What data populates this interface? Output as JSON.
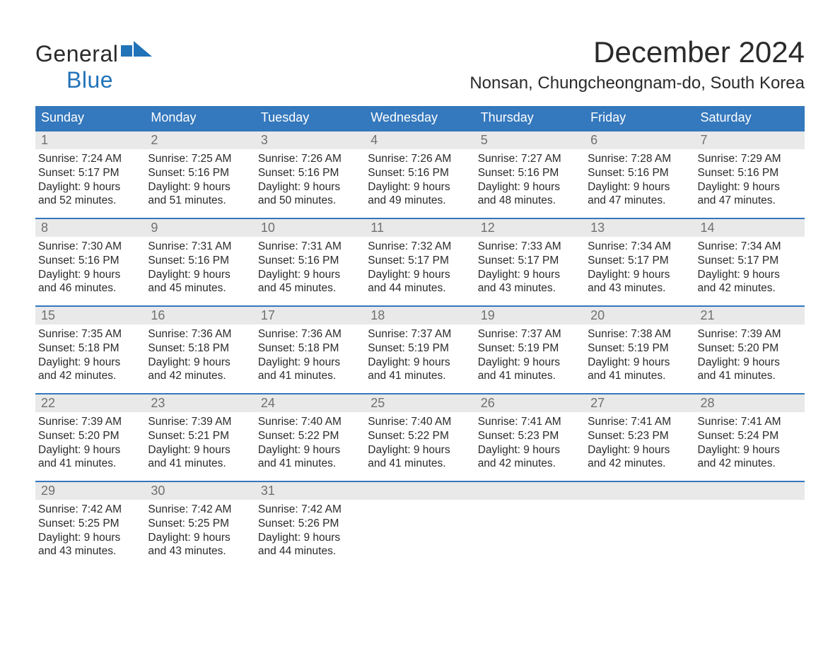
{
  "brand": {
    "general": "General",
    "blue": "Blue",
    "accent": "#2173b8"
  },
  "title": "December 2024",
  "location": "Nonsan, Chungcheongnam-do, South Korea",
  "colors": {
    "header_bg": "#3478bd",
    "header_text": "#ffffff",
    "daynum_bg": "#e9e9e9",
    "daynum_text": "#707070",
    "body_text": "#2a2a2a",
    "week_border": "#3478bd",
    "page_bg": "#ffffff"
  },
  "typography": {
    "title_pt": 42,
    "location_pt": 24,
    "dow_pt": 18,
    "daynum_pt": 18,
    "body_pt": 15.5
  },
  "dow": [
    "Sunday",
    "Monday",
    "Tuesday",
    "Wednesday",
    "Thursday",
    "Friday",
    "Saturday"
  ],
  "weeks": [
    [
      {
        "n": "1",
        "sr": "Sunrise: 7:24 AM",
        "ss": "Sunset: 5:17 PM",
        "d1": "Daylight: 9 hours",
        "d2": "and 52 minutes."
      },
      {
        "n": "2",
        "sr": "Sunrise: 7:25 AM",
        "ss": "Sunset: 5:16 PM",
        "d1": "Daylight: 9 hours",
        "d2": "and 51 minutes."
      },
      {
        "n": "3",
        "sr": "Sunrise: 7:26 AM",
        "ss": "Sunset: 5:16 PM",
        "d1": "Daylight: 9 hours",
        "d2": "and 50 minutes."
      },
      {
        "n": "4",
        "sr": "Sunrise: 7:26 AM",
        "ss": "Sunset: 5:16 PM",
        "d1": "Daylight: 9 hours",
        "d2": "and 49 minutes."
      },
      {
        "n": "5",
        "sr": "Sunrise: 7:27 AM",
        "ss": "Sunset: 5:16 PM",
        "d1": "Daylight: 9 hours",
        "d2": "and 48 minutes."
      },
      {
        "n": "6",
        "sr": "Sunrise: 7:28 AM",
        "ss": "Sunset: 5:16 PM",
        "d1": "Daylight: 9 hours",
        "d2": "and 47 minutes."
      },
      {
        "n": "7",
        "sr": "Sunrise: 7:29 AM",
        "ss": "Sunset: 5:16 PM",
        "d1": "Daylight: 9 hours",
        "d2": "and 47 minutes."
      }
    ],
    [
      {
        "n": "8",
        "sr": "Sunrise: 7:30 AM",
        "ss": "Sunset: 5:16 PM",
        "d1": "Daylight: 9 hours",
        "d2": "and 46 minutes."
      },
      {
        "n": "9",
        "sr": "Sunrise: 7:31 AM",
        "ss": "Sunset: 5:16 PM",
        "d1": "Daylight: 9 hours",
        "d2": "and 45 minutes."
      },
      {
        "n": "10",
        "sr": "Sunrise: 7:31 AM",
        "ss": "Sunset: 5:16 PM",
        "d1": "Daylight: 9 hours",
        "d2": "and 45 minutes."
      },
      {
        "n": "11",
        "sr": "Sunrise: 7:32 AM",
        "ss": "Sunset: 5:17 PM",
        "d1": "Daylight: 9 hours",
        "d2": "and 44 minutes."
      },
      {
        "n": "12",
        "sr": "Sunrise: 7:33 AM",
        "ss": "Sunset: 5:17 PM",
        "d1": "Daylight: 9 hours",
        "d2": "and 43 minutes."
      },
      {
        "n": "13",
        "sr": "Sunrise: 7:34 AM",
        "ss": "Sunset: 5:17 PM",
        "d1": "Daylight: 9 hours",
        "d2": "and 43 minutes."
      },
      {
        "n": "14",
        "sr": "Sunrise: 7:34 AM",
        "ss": "Sunset: 5:17 PM",
        "d1": "Daylight: 9 hours",
        "d2": "and 42 minutes."
      }
    ],
    [
      {
        "n": "15",
        "sr": "Sunrise: 7:35 AM",
        "ss": "Sunset: 5:18 PM",
        "d1": "Daylight: 9 hours",
        "d2": "and 42 minutes."
      },
      {
        "n": "16",
        "sr": "Sunrise: 7:36 AM",
        "ss": "Sunset: 5:18 PM",
        "d1": "Daylight: 9 hours",
        "d2": "and 42 minutes."
      },
      {
        "n": "17",
        "sr": "Sunrise: 7:36 AM",
        "ss": "Sunset: 5:18 PM",
        "d1": "Daylight: 9 hours",
        "d2": "and 41 minutes."
      },
      {
        "n": "18",
        "sr": "Sunrise: 7:37 AM",
        "ss": "Sunset: 5:19 PM",
        "d1": "Daylight: 9 hours",
        "d2": "and 41 minutes."
      },
      {
        "n": "19",
        "sr": "Sunrise: 7:37 AM",
        "ss": "Sunset: 5:19 PM",
        "d1": "Daylight: 9 hours",
        "d2": "and 41 minutes."
      },
      {
        "n": "20",
        "sr": "Sunrise: 7:38 AM",
        "ss": "Sunset: 5:19 PM",
        "d1": "Daylight: 9 hours",
        "d2": "and 41 minutes."
      },
      {
        "n": "21",
        "sr": "Sunrise: 7:39 AM",
        "ss": "Sunset: 5:20 PM",
        "d1": "Daylight: 9 hours",
        "d2": "and 41 minutes."
      }
    ],
    [
      {
        "n": "22",
        "sr": "Sunrise: 7:39 AM",
        "ss": "Sunset: 5:20 PM",
        "d1": "Daylight: 9 hours",
        "d2": "and 41 minutes."
      },
      {
        "n": "23",
        "sr": "Sunrise: 7:39 AM",
        "ss": "Sunset: 5:21 PM",
        "d1": "Daylight: 9 hours",
        "d2": "and 41 minutes."
      },
      {
        "n": "24",
        "sr": "Sunrise: 7:40 AM",
        "ss": "Sunset: 5:22 PM",
        "d1": "Daylight: 9 hours",
        "d2": "and 41 minutes."
      },
      {
        "n": "25",
        "sr": "Sunrise: 7:40 AM",
        "ss": "Sunset: 5:22 PM",
        "d1": "Daylight: 9 hours",
        "d2": "and 41 minutes."
      },
      {
        "n": "26",
        "sr": "Sunrise: 7:41 AM",
        "ss": "Sunset: 5:23 PM",
        "d1": "Daylight: 9 hours",
        "d2": "and 42 minutes."
      },
      {
        "n": "27",
        "sr": "Sunrise: 7:41 AM",
        "ss": "Sunset: 5:23 PM",
        "d1": "Daylight: 9 hours",
        "d2": "and 42 minutes."
      },
      {
        "n": "28",
        "sr": "Sunrise: 7:41 AM",
        "ss": "Sunset: 5:24 PM",
        "d1": "Daylight: 9 hours",
        "d2": "and 42 minutes."
      }
    ],
    [
      {
        "n": "29",
        "sr": "Sunrise: 7:42 AM",
        "ss": "Sunset: 5:25 PM",
        "d1": "Daylight: 9 hours",
        "d2": "and 43 minutes."
      },
      {
        "n": "30",
        "sr": "Sunrise: 7:42 AM",
        "ss": "Sunset: 5:25 PM",
        "d1": "Daylight: 9 hours",
        "d2": "and 43 minutes."
      },
      {
        "n": "31",
        "sr": "Sunrise: 7:42 AM",
        "ss": "Sunset: 5:26 PM",
        "d1": "Daylight: 9 hours",
        "d2": "and 44 minutes."
      },
      null,
      null,
      null,
      null
    ]
  ]
}
